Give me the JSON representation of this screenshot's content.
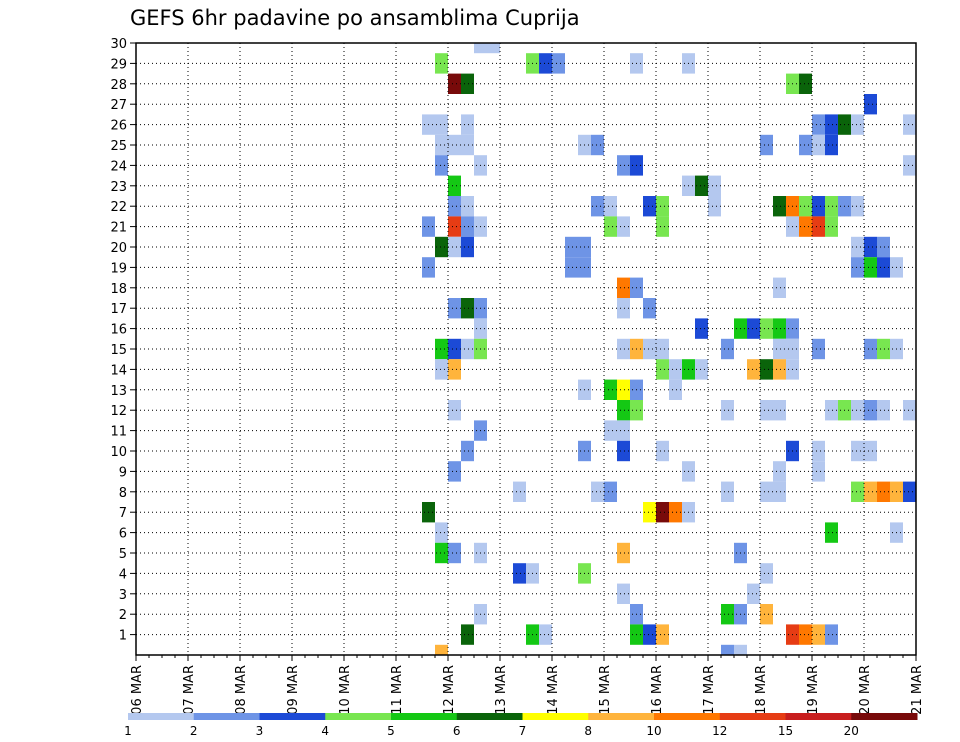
{
  "chart_data": {
    "type": "heatmap",
    "title": "GEFS 6hr padavine po ansamblima Cuprija",
    "xlabel": "",
    "ylabel": "",
    "x_tick_labels": [
      "06 MAR",
      "07 MAR",
      "08 MAR",
      "09 MAR",
      "10 MAR",
      "11 MAR",
      "12 MAR",
      "13 MAR",
      "14 MAR",
      "15 MAR",
      "16 MAR",
      "17 MAR",
      "18 MAR",
      "19 MAR",
      "20 MAR",
      "21 MAR"
    ],
    "x_range_days": [
      0,
      15
    ],
    "y_range": [
      0,
      30
    ],
    "y_ticks": [
      1,
      2,
      3,
      4,
      5,
      6,
      7,
      8,
      9,
      10,
      11,
      12,
      13,
      14,
      15,
      16,
      17,
      18,
      19,
      20,
      21,
      22,
      23,
      24,
      25,
      26,
      27,
      28,
      29,
      30
    ],
    "grid": true,
    "value_unit_step_days": 0.25,
    "colorbar": {
      "placement": "bottom",
      "labels": [
        "1",
        "2",
        "3",
        "4",
        "5",
        "6",
        "7",
        "8",
        "10",
        "12",
        "15",
        "20"
      ],
      "colors": [
        "#b4c8ef",
        "#6e94e6",
        "#1c4ad6",
        "#78e650",
        "#14c814",
        "#0a640a",
        "#ffff00",
        "#ffb43c",
        "#ff7800",
        "#e63c14",
        "#c81e1e",
        "#780a0a"
      ]
    },
    "cells": [
      {
        "y": 30,
        "x": 6.5,
        "w": 0.5,
        "c": 0
      },
      {
        "y": 29,
        "x": 5.75,
        "c": 3
      },
      {
        "y": 29,
        "x": 7.5,
        "c": 3
      },
      {
        "y": 29,
        "x": 7.75,
        "c": 2
      },
      {
        "y": 29,
        "x": 8,
        "c": 1
      },
      {
        "y": 29,
        "x": 9.5,
        "c": 0
      },
      {
        "y": 29,
        "x": 10.5,
        "c": 0
      },
      {
        "y": 28,
        "x": 6,
        "c": 11
      },
      {
        "y": 28,
        "x": 6.25,
        "c": 5
      },
      {
        "y": 28,
        "x": 12.5,
        "c": 3
      },
      {
        "y": 28,
        "x": 12.75,
        "c": 5
      },
      {
        "y": 27,
        "x": 14,
        "c": 2
      },
      {
        "y": 26,
        "x": 5.5,
        "w": 0.5,
        "c": 0
      },
      {
        "y": 26,
        "x": 6.25,
        "c": 0
      },
      {
        "y": 26,
        "x": 13,
        "c": 1
      },
      {
        "y": 26,
        "x": 13.25,
        "c": 2
      },
      {
        "y": 26,
        "x": 13.5,
        "c": 5
      },
      {
        "y": 26,
        "x": 13.75,
        "c": 0
      },
      {
        "y": 26,
        "x": 14.75,
        "c": 0
      },
      {
        "y": 25,
        "x": 5.75,
        "w": 0.75,
        "c": 0
      },
      {
        "y": 25,
        "x": 8.5,
        "c": 0
      },
      {
        "y": 25,
        "x": 8.75,
        "c": 1
      },
      {
        "y": 25,
        "x": 12,
        "c": 1
      },
      {
        "y": 25,
        "x": 12.75,
        "c": 1
      },
      {
        "y": 25,
        "x": 13,
        "c": 0
      },
      {
        "y": 25,
        "x": 13.25,
        "c": 2
      },
      {
        "y": 24,
        "x": 5.75,
        "c": 1
      },
      {
        "y": 24,
        "x": 6.5,
        "c": 0
      },
      {
        "y": 24,
        "x": 9.25,
        "c": 1
      },
      {
        "y": 24,
        "x": 9.5,
        "c": 2
      },
      {
        "y": 24,
        "x": 14.75,
        "c": 0
      },
      {
        "y": 23,
        "x": 6,
        "c": 4
      },
      {
        "y": 23,
        "x": 10.5,
        "c": 0
      },
      {
        "y": 23,
        "x": 10.75,
        "c": 5
      },
      {
        "y": 23,
        "x": 11,
        "c": 0
      },
      {
        "y": 22,
        "x": 6,
        "c": 1
      },
      {
        "y": 22,
        "x": 6.25,
        "c": 0
      },
      {
        "y": 22,
        "x": 8.75,
        "c": 1
      },
      {
        "y": 22,
        "x": 9,
        "c": 0
      },
      {
        "y": 22,
        "x": 9.75,
        "c": 2
      },
      {
        "y": 22,
        "x": 10,
        "c": 3
      },
      {
        "y": 22,
        "x": 11,
        "c": 0
      },
      {
        "y": 22,
        "x": 12.25,
        "c": 5
      },
      {
        "y": 22,
        "x": 12.5,
        "c": 8
      },
      {
        "y": 22,
        "x": 12.75,
        "c": 3
      },
      {
        "y": 22,
        "x": 13,
        "c": 2
      },
      {
        "y": 22,
        "x": 13.25,
        "c": 3
      },
      {
        "y": 22,
        "x": 13.5,
        "c": 1
      },
      {
        "y": 22,
        "x": 13.75,
        "c": 0
      },
      {
        "y": 21,
        "x": 5.5,
        "c": 1
      },
      {
        "y": 21,
        "x": 6,
        "c": 9
      },
      {
        "y": 21,
        "x": 6.25,
        "c": 1
      },
      {
        "y": 21,
        "x": 6.5,
        "c": 0
      },
      {
        "y": 21,
        "x": 9,
        "c": 3
      },
      {
        "y": 21,
        "x": 9.25,
        "c": 0
      },
      {
        "y": 21,
        "x": 10,
        "c": 3
      },
      {
        "y": 21,
        "x": 12.5,
        "c": 0
      },
      {
        "y": 21,
        "x": 12.75,
        "c": 8
      },
      {
        "y": 21,
        "x": 13,
        "c": 9
      },
      {
        "y": 21,
        "x": 13.25,
        "c": 3
      },
      {
        "y": 20,
        "x": 5.75,
        "c": 5
      },
      {
        "y": 20,
        "x": 6,
        "c": 0
      },
      {
        "y": 20,
        "x": 6.25,
        "c": 2
      },
      {
        "y": 20,
        "x": 8.25,
        "w": 0.5,
        "c": 1
      },
      {
        "y": 20,
        "x": 13.75,
        "c": 0
      },
      {
        "y": 20,
        "x": 14,
        "c": 2
      },
      {
        "y": 20,
        "x": 14.25,
        "c": 1
      },
      {
        "y": 19,
        "x": 5.5,
        "c": 1
      },
      {
        "y": 19,
        "x": 8.25,
        "w": 0.5,
        "c": 1
      },
      {
        "y": 19,
        "x": 13.75,
        "c": 1
      },
      {
        "y": 19,
        "x": 14,
        "c": 4
      },
      {
        "y": 19,
        "x": 14.25,
        "c": 2
      },
      {
        "y": 19,
        "x": 14.5,
        "c": 0
      },
      {
        "y": 18,
        "x": 9.25,
        "c": 8
      },
      {
        "y": 18,
        "x": 9.5,
        "c": 1
      },
      {
        "y": 18,
        "x": 12.25,
        "c": 0
      },
      {
        "y": 17,
        "x": 6,
        "c": 1
      },
      {
        "y": 17,
        "x": 6.25,
        "c": 5
      },
      {
        "y": 17,
        "x": 6.5,
        "c": 1
      },
      {
        "y": 17,
        "x": 9.25,
        "c": 0
      },
      {
        "y": 17,
        "x": 9.75,
        "c": 1
      },
      {
        "y": 16,
        "x": 6.5,
        "c": 0
      },
      {
        "y": 16,
        "x": 10.75,
        "c": 2
      },
      {
        "y": 16,
        "x": 11.5,
        "c": 4
      },
      {
        "y": 16,
        "x": 11.75,
        "c": 2
      },
      {
        "y": 16,
        "x": 12,
        "c": 3
      },
      {
        "y": 16,
        "x": 12.25,
        "c": 4
      },
      {
        "y": 16,
        "x": 12.5,
        "c": 1
      },
      {
        "y": 15,
        "x": 5.75,
        "c": 4
      },
      {
        "y": 15,
        "x": 6,
        "c": 2
      },
      {
        "y": 15,
        "x": 6.25,
        "c": 0
      },
      {
        "y": 15,
        "x": 6.5,
        "c": 3
      },
      {
        "y": 15,
        "x": 9.25,
        "c": 0
      },
      {
        "y": 15,
        "x": 9.5,
        "c": 7
      },
      {
        "y": 15,
        "x": 9.75,
        "w": 0.5,
        "c": 0
      },
      {
        "y": 15,
        "x": 11.25,
        "c": 1
      },
      {
        "y": 15,
        "x": 12.25,
        "w": 0.5,
        "c": 0
      },
      {
        "y": 15,
        "x": 13,
        "c": 1
      },
      {
        "y": 15,
        "x": 14,
        "c": 1
      },
      {
        "y": 15,
        "x": 14.25,
        "c": 3
      },
      {
        "y": 15,
        "x": 14.5,
        "c": 0
      },
      {
        "y": 14,
        "x": 5.75,
        "c": 0
      },
      {
        "y": 14,
        "x": 6,
        "c": 7
      },
      {
        "y": 14,
        "x": 10,
        "c": 3
      },
      {
        "y": 14,
        "x": 10.25,
        "c": 0
      },
      {
        "y": 14,
        "x": 10.5,
        "c": 4
      },
      {
        "y": 14,
        "x": 10.75,
        "c": 0
      },
      {
        "y": 14,
        "x": 11.75,
        "c": 7
      },
      {
        "y": 14,
        "x": 12,
        "c": 5
      },
      {
        "y": 14,
        "x": 12.25,
        "c": 7
      },
      {
        "y": 14,
        "x": 12.5,
        "c": 0
      },
      {
        "y": 13,
        "x": 8.5,
        "c": 0
      },
      {
        "y": 13,
        "x": 9,
        "c": 4
      },
      {
        "y": 13,
        "x": 9.25,
        "c": 6
      },
      {
        "y": 13,
        "x": 9.5,
        "c": 1
      },
      {
        "y": 13,
        "x": 10.25,
        "c": 0
      },
      {
        "y": 12,
        "x": 6,
        "c": 0
      },
      {
        "y": 12,
        "x": 9.25,
        "c": 4
      },
      {
        "y": 12,
        "x": 9.5,
        "c": 3
      },
      {
        "y": 12,
        "x": 11.25,
        "c": 0
      },
      {
        "y": 12,
        "x": 12,
        "w": 0.5,
        "c": 0
      },
      {
        "y": 12,
        "x": 13.25,
        "c": 0
      },
      {
        "y": 12,
        "x": 13.5,
        "c": 3
      },
      {
        "y": 12,
        "x": 13.75,
        "c": 0
      },
      {
        "y": 12,
        "x": 14,
        "c": 1
      },
      {
        "y": 12,
        "x": 14.25,
        "c": 0
      },
      {
        "y": 12,
        "x": 14.75,
        "c": 0
      },
      {
        "y": 11,
        "x": 6.5,
        "c": 1
      },
      {
        "y": 11,
        "x": 9,
        "w": 0.5,
        "c": 0
      },
      {
        "y": 10,
        "x": 6.25,
        "c": 1
      },
      {
        "y": 10,
        "x": 8.5,
        "c": 1
      },
      {
        "y": 10,
        "x": 9.25,
        "c": 2
      },
      {
        "y": 10,
        "x": 10,
        "c": 0
      },
      {
        "y": 10,
        "x": 12.5,
        "c": 2
      },
      {
        "y": 10,
        "x": 13,
        "c": 0
      },
      {
        "y": 10,
        "x": 13.75,
        "w": 0.5,
        "c": 0
      },
      {
        "y": 9,
        "x": 6,
        "c": 1
      },
      {
        "y": 9,
        "x": 10.5,
        "c": 0
      },
      {
        "y": 9,
        "x": 12.25,
        "c": 0
      },
      {
        "y": 9,
        "x": 13,
        "c": 0
      },
      {
        "y": 8,
        "x": 7.25,
        "c": 0
      },
      {
        "y": 8,
        "x": 8.75,
        "c": 0
      },
      {
        "y": 8,
        "x": 9,
        "c": 1
      },
      {
        "y": 8,
        "x": 11.25,
        "c": 0
      },
      {
        "y": 8,
        "x": 12,
        "w": 0.5,
        "c": 0
      },
      {
        "y": 8,
        "x": 13.75,
        "c": 3
      },
      {
        "y": 8,
        "x": 14,
        "c": 7
      },
      {
        "y": 8,
        "x": 14.25,
        "c": 8
      },
      {
        "y": 8,
        "x": 14.5,
        "c": 7
      },
      {
        "y": 8,
        "x": 14.75,
        "c": 2
      },
      {
        "y": 7,
        "x": 5.5,
        "c": 5
      },
      {
        "y": 7,
        "x": 9.75,
        "c": 6
      },
      {
        "y": 7,
        "x": 10,
        "c": 11
      },
      {
        "y": 7,
        "x": 10.25,
        "c": 8
      },
      {
        "y": 7,
        "x": 10.5,
        "c": 0
      },
      {
        "y": 6,
        "x": 5.75,
        "c": 0
      },
      {
        "y": 6,
        "x": 13.25,
        "c": 4
      },
      {
        "y": 6,
        "x": 14.5,
        "c": 0
      },
      {
        "y": 5,
        "x": 5.75,
        "c": 4
      },
      {
        "y": 5,
        "x": 6,
        "c": 1
      },
      {
        "y": 5,
        "x": 6.5,
        "c": 0
      },
      {
        "y": 5,
        "x": 9.25,
        "c": 7
      },
      {
        "y": 5,
        "x": 11.5,
        "c": 1
      },
      {
        "y": 4,
        "x": 7.25,
        "c": 2
      },
      {
        "y": 4,
        "x": 7.5,
        "c": 0
      },
      {
        "y": 4,
        "x": 8.5,
        "c": 3
      },
      {
        "y": 4,
        "x": 12,
        "c": 0
      },
      {
        "y": 3,
        "x": 9.25,
        "c": 0
      },
      {
        "y": 3,
        "x": 11.75,
        "c": 0
      },
      {
        "y": 2,
        "x": 6.5,
        "c": 0
      },
      {
        "y": 2,
        "x": 9.5,
        "c": 1
      },
      {
        "y": 2,
        "x": 11.25,
        "c": 4
      },
      {
        "y": 2,
        "x": 11.5,
        "c": 1
      },
      {
        "y": 2,
        "x": 12,
        "c": 7
      },
      {
        "y": 1,
        "x": 6.25,
        "c": 5
      },
      {
        "y": 1,
        "x": 7.5,
        "c": 4
      },
      {
        "y": 1,
        "x": 7.75,
        "c": 0
      },
      {
        "y": 1,
        "x": 9.5,
        "c": 4
      },
      {
        "y": 1,
        "x": 9.75,
        "c": 2
      },
      {
        "y": 1,
        "x": 10,
        "c": 7
      },
      {
        "y": 1,
        "x": 12.5,
        "c": 9
      },
      {
        "y": 1,
        "x": 12.75,
        "c": 8
      },
      {
        "y": 1,
        "x": 13,
        "c": 7
      },
      {
        "y": 1,
        "x": 13.25,
        "c": 1
      },
      {
        "y": 0,
        "x": 5.75,
        "c": 7
      },
      {
        "y": 0,
        "x": 11.25,
        "c": 1
      },
      {
        "y": 0,
        "x": 11.5,
        "c": 0
      }
    ]
  }
}
